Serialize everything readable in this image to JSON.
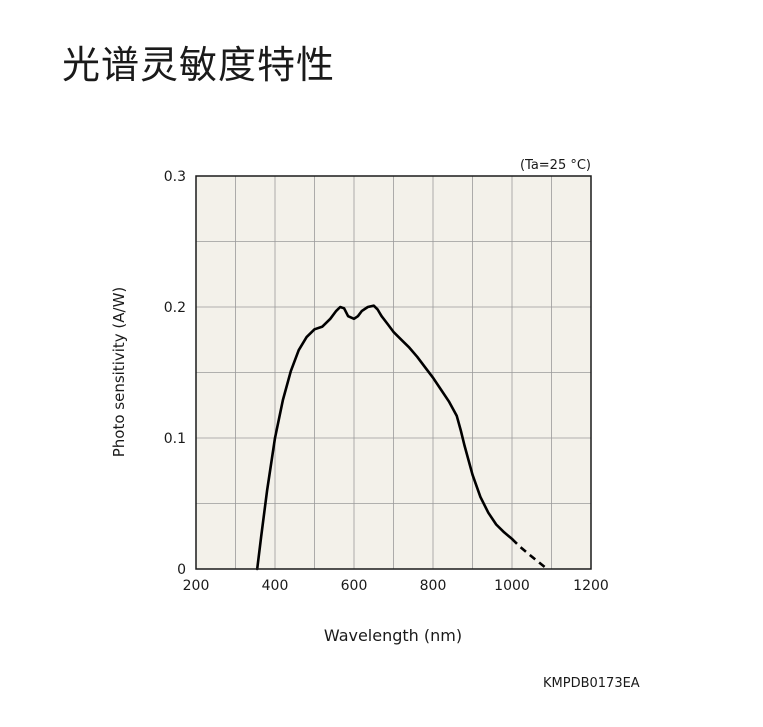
{
  "page": {
    "title": "光谱灵敏度特性",
    "doc_code": "KMPDB0173EA"
  },
  "chart_data": {
    "type": "line",
    "title": "",
    "condition_note": "(Ta=25 °C)",
    "xlabel": "Wavelength (nm)",
    "ylabel": "Photo sensitivity (A/W)",
    "xlim": [
      200,
      1200
    ],
    "ylim": [
      0,
      0.3
    ],
    "x_ticks": [
      200,
      400,
      600,
      800,
      1000,
      1200
    ],
    "x_tick_labels": [
      "200",
      "400",
      "600",
      "800",
      "1000",
      "1200"
    ],
    "y_ticks": [
      0,
      0.1,
      0.2,
      0.3
    ],
    "y_tick_labels": [
      "0",
      "0.1",
      "0.2",
      "0.3"
    ],
    "grid": true,
    "plot_background": "#f3f1ea",
    "line_color": "#000000",
    "series": [
      {
        "name": "",
        "style": "solid",
        "x": [
          355,
          365,
          380,
          400,
          420,
          440,
          460,
          480,
          500,
          520,
          540,
          555,
          565,
          575,
          585,
          600,
          610,
          620,
          635,
          650,
          660,
          670,
          685,
          700,
          720,
          740,
          760,
          780,
          800,
          820,
          840,
          860,
          870,
          880,
          900,
          920,
          940,
          960,
          980,
          1000
        ],
        "y": [
          0.0,
          0.025,
          0.06,
          0.1,
          0.129,
          0.151,
          0.167,
          0.177,
          0.183,
          0.185,
          0.191,
          0.197,
          0.2,
          0.199,
          0.193,
          0.191,
          0.193,
          0.197,
          0.2,
          0.201,
          0.198,
          0.193,
          0.187,
          0.181,
          0.175,
          0.169,
          0.162,
          0.154,
          0.146,
          0.137,
          0.128,
          0.117,
          0.106,
          0.094,
          0.072,
          0.055,
          0.043,
          0.034,
          0.028,
          0.023
        ]
      },
      {
        "name": "",
        "style": "dashed",
        "x": [
          1000,
          1020,
          1040,
          1060,
          1085
        ],
        "y": [
          0.023,
          0.017,
          0.012,
          0.007,
          0.001
        ]
      }
    ]
  }
}
